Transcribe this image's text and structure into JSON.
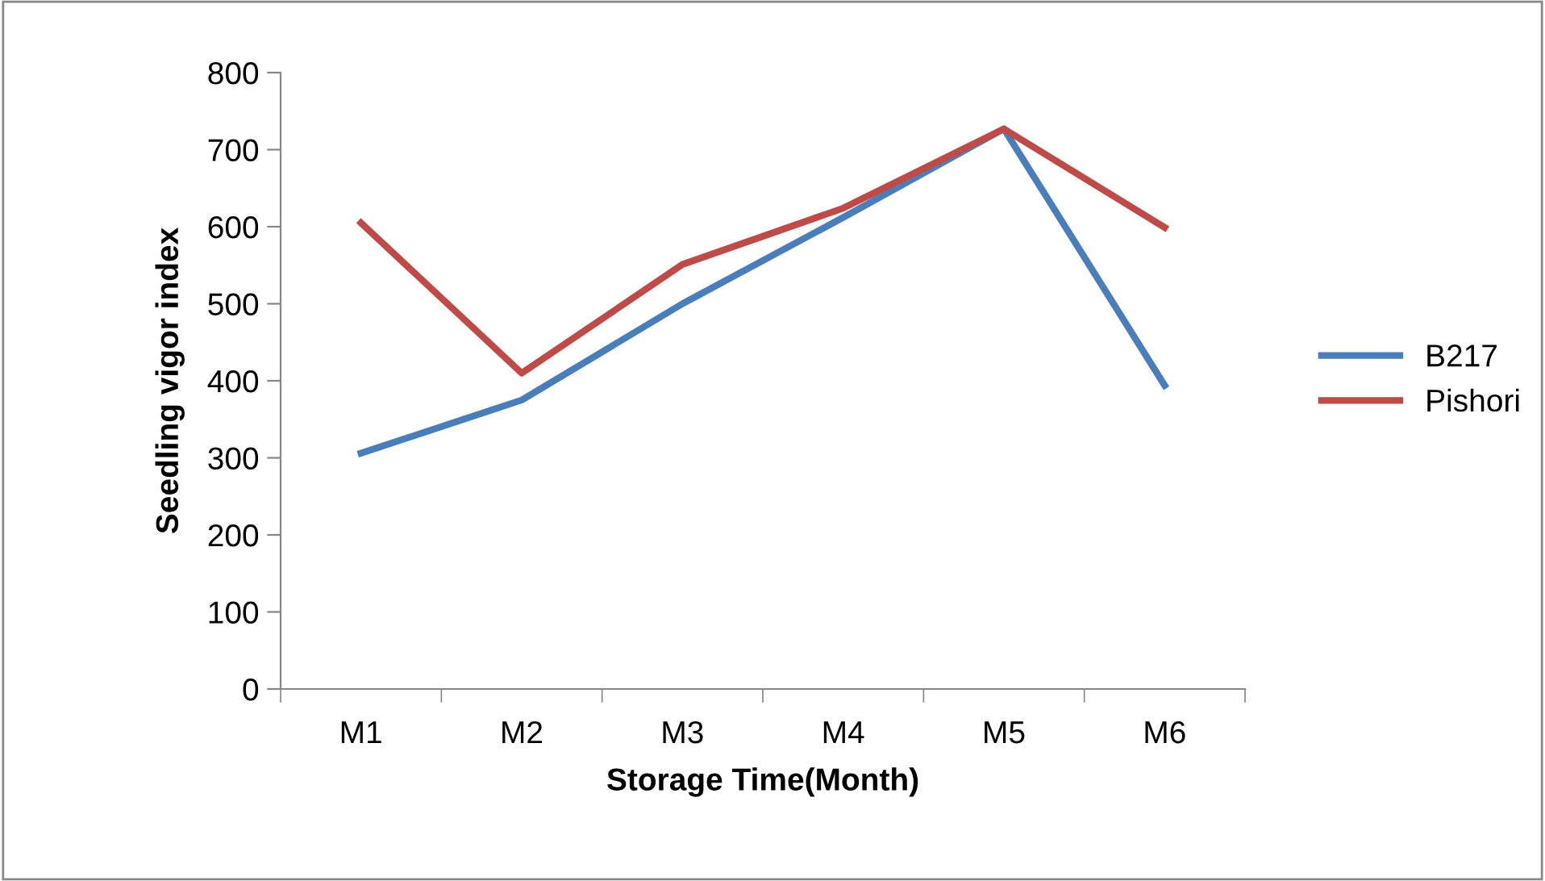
{
  "chart_data": {
    "type": "line",
    "xlabel": "Storage Time(Month)",
    "ylabel": "Seedling vigor index",
    "categories": [
      "M1",
      "M2",
      "M3",
      "M4",
      "M5",
      "M6"
    ],
    "series": [
      {
        "name": "B217",
        "color": "#4a7ebb",
        "values": [
          306,
          375,
          500,
          612,
          727,
          394
        ]
      },
      {
        "name": "Pishori",
        "color": "#be4b48",
        "values": [
          605,
          410,
          551,
          624,
          727,
          599
        ]
      }
    ],
    "ylim": [
      0,
      800
    ],
    "yticks": [
      0,
      100,
      200,
      300,
      400,
      500,
      600,
      700,
      800
    ],
    "grid": false,
    "legend": "right",
    "marker": "none",
    "line_style": "solid"
  }
}
